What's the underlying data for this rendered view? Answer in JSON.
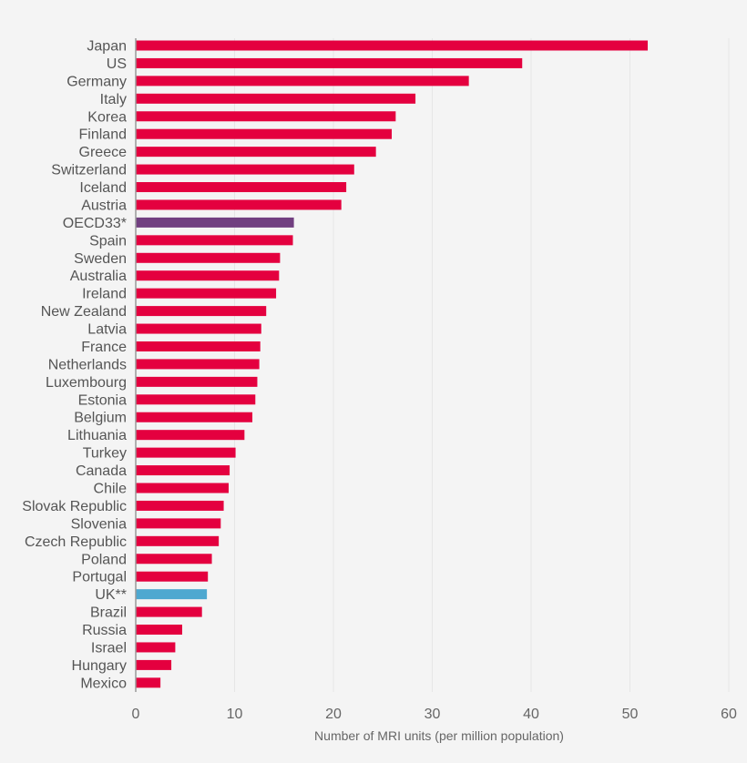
{
  "chart_data": {
    "type": "bar",
    "orientation": "horizontal",
    "title": "",
    "xlabel": "Number of MRI units (per million population)",
    "ylabel": "",
    "xlim": [
      0,
      60
    ],
    "xticks": [
      "0",
      "10",
      "20",
      "30",
      "40",
      "50",
      "60"
    ],
    "grid": "vertical, faint",
    "categories": [
      "Japan",
      "US",
      "Germany",
      "Italy",
      "Korea",
      "Finland",
      "Greece",
      "Switzerland",
      "Iceland",
      "Austria",
      "OECD33*",
      "Spain",
      "Sweden",
      "Australia",
      "Ireland",
      "New Zealand",
      "Latvia",
      "France",
      "Netherlands",
      "Luxembourg",
      "Estonia",
      "Belgium",
      "Lithuania",
      "Turkey",
      "Canada",
      "Chile",
      "Slovak Republic",
      "Slovenia",
      "Czech Republic",
      "Poland",
      "Portugal",
      "UK**",
      "Brazil",
      "Russia",
      "Israel",
      "Hungary",
      "Mexico"
    ],
    "values": [
      51.8,
      39.1,
      33.7,
      28.3,
      26.3,
      25.9,
      24.3,
      22.1,
      21.3,
      20.8,
      16.0,
      15.9,
      14.6,
      14.5,
      14.2,
      13.2,
      12.7,
      12.6,
      12.5,
      12.3,
      12.1,
      11.8,
      11.0,
      10.1,
      9.5,
      9.4,
      8.9,
      8.6,
      8.4,
      7.7,
      7.3,
      7.2,
      6.7,
      4.7,
      4.0,
      3.6,
      2.5
    ],
    "colors": {
      "default": "#e4003f",
      "OECD33*": "#713f80",
      "UK**": "#4ea8d0"
    }
  }
}
